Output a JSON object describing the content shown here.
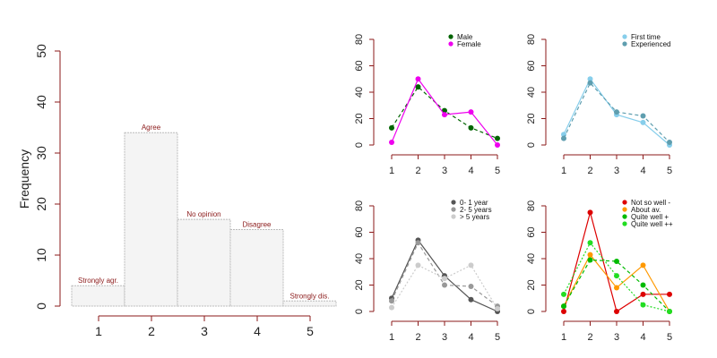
{
  "chart_data": [
    {
      "type": "bar",
      "ylabel": "Frequency",
      "categories": [
        "1",
        "2",
        "3",
        "4",
        "5"
      ],
      "values": [
        4,
        34,
        17,
        15,
        1
      ],
      "bar_labels": [
        "Strongly agr.",
        "Agree",
        "No opinion",
        "Disagree",
        "Strongly dis."
      ],
      "ylim": [
        0,
        50
      ],
      "yticks": [
        "0",
        "10",
        "20",
        "30",
        "40",
        "50"
      ],
      "colors": {
        "bar_fill": "#f4f4f4",
        "bar_stroke": "#bbbbbb",
        "bar_label": "#8b1a1a",
        "axis": "#8b1a1a"
      }
    },
    {
      "type": "line",
      "x": [
        1,
        2,
        3,
        4,
        5
      ],
      "xticks": [
        "1",
        "2",
        "3",
        "4",
        "5"
      ],
      "ylim": [
        0,
        80
      ],
      "yticks": [
        "0",
        "20",
        "40",
        "60",
        "80"
      ],
      "series": [
        {
          "name": "Male",
          "values": [
            13,
            44,
            26,
            13,
            5
          ],
          "color": "#006400",
          "dash": "4,3"
        },
        {
          "name": "Female",
          "values": [
            2,
            50,
            23,
            25,
            0
          ],
          "color": "#ee00ee",
          "dash": ""
        }
      ]
    },
    {
      "type": "line",
      "x": [
        1,
        2,
        3,
        4,
        5
      ],
      "xticks": [
        "1",
        "2",
        "3",
        "4",
        "5"
      ],
      "ylim": [
        0,
        80
      ],
      "yticks": [
        "0",
        "20",
        "40",
        "60",
        "80"
      ],
      "series": [
        {
          "name": "First time",
          "values": [
            8,
            50,
            23,
            17,
            0
          ],
          "color": "#87ceeb",
          "dash": ""
        },
        {
          "name": "Experienced",
          "values": [
            5,
            47,
            25,
            22,
            2
          ],
          "color": "#5f9eaf",
          "dash": "4,3"
        }
      ]
    },
    {
      "type": "line",
      "x": [
        1,
        2,
        3,
        4,
        5
      ],
      "xticks": [
        "1",
        "2",
        "3",
        "4",
        "5"
      ],
      "ylim": [
        0,
        80
      ],
      "yticks": [
        "0",
        "20",
        "40",
        "60",
        "80"
      ],
      "series": [
        {
          "name": "0- 1 year",
          "values": [
            10,
            54,
            27,
            9,
            0
          ],
          "color": "#555555",
          "dash": ""
        },
        {
          "name": "2- 5 years",
          "values": [
            8,
            52,
            20,
            19,
            4
          ],
          "color": "#999999",
          "dash": "4,3"
        },
        {
          "name": "> 5 years",
          "values": [
            3,
            35,
            25,
            35,
            2
          ],
          "color": "#cccccc",
          "dash": "2,2"
        }
      ]
    },
    {
      "type": "line",
      "x": [
        1,
        2,
        3,
        4,
        5
      ],
      "xticks": [
        "1",
        "2",
        "3",
        "4",
        "5"
      ],
      "ylim": [
        0,
        80
      ],
      "yticks": [
        "0",
        "20",
        "40",
        "60",
        "80"
      ],
      "series": [
        {
          "name": "Not so well -",
          "values": [
            0,
            75,
            0,
            13,
            13
          ],
          "color": "#dd0000",
          "dash": ""
        },
        {
          "name": "About av.",
          "values": [
            4,
            43,
            18,
            35,
            0
          ],
          "color": "#ff9900",
          "dash": ""
        },
        {
          "name": "Quite well +",
          "values": [
            4,
            39,
            38,
            20,
            0
          ],
          "color": "#00bb00",
          "dash": "4,3"
        },
        {
          "name": "Quite well ++",
          "values": [
            13,
            52,
            27,
            5,
            0
          ],
          "color": "#22dd22",
          "dash": "2,2"
        }
      ]
    }
  ]
}
